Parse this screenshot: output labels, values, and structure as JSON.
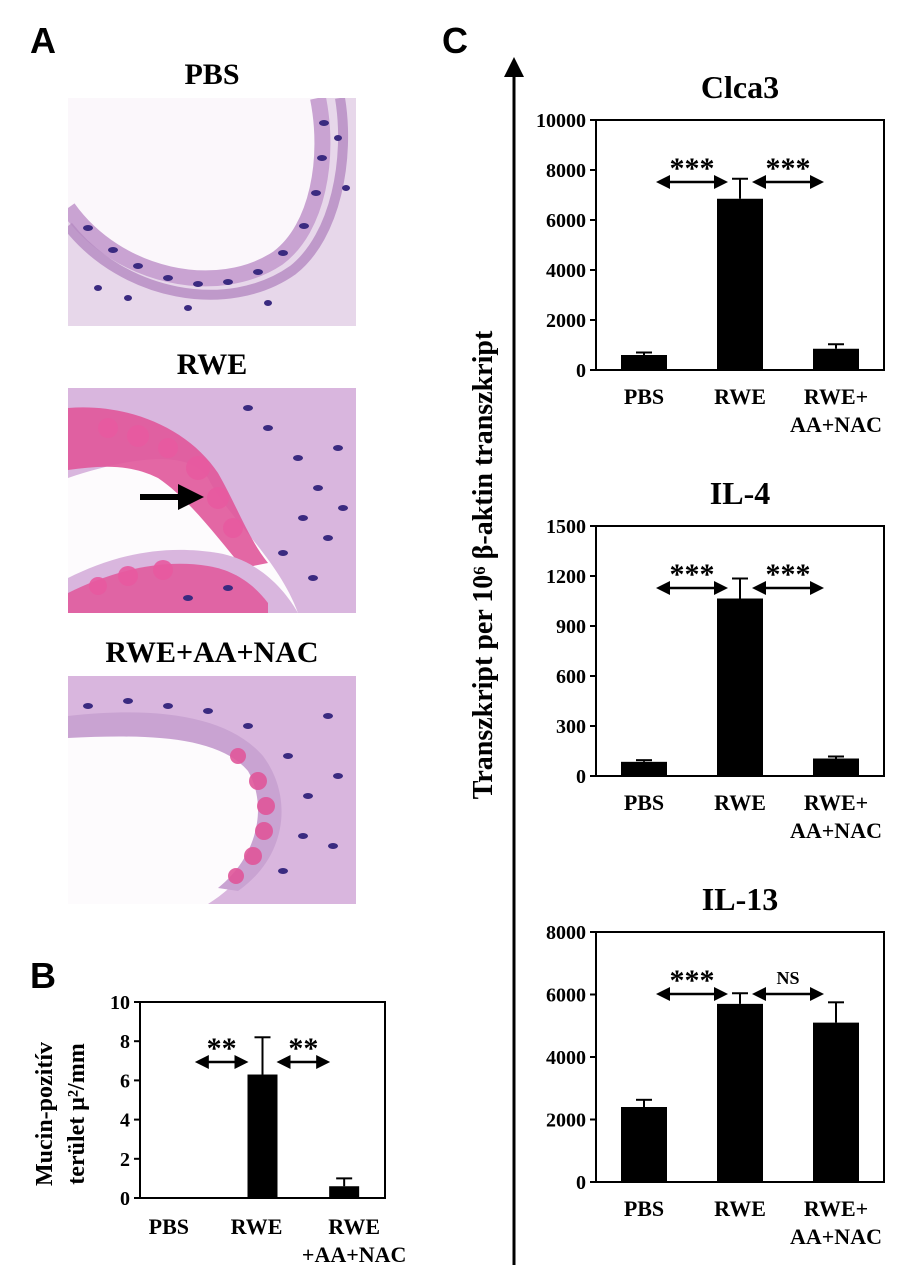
{
  "panels": {
    "A": {
      "letter": "A",
      "images": [
        {
          "title": "PBS",
          "kind": "normal-airway"
        },
        {
          "title": "RWE",
          "kind": "mucin-filled-airway"
        },
        {
          "title": "RWE+AA+NAC",
          "kind": "reduced-mucin-airway"
        }
      ]
    },
    "B": {
      "letter": "B"
    },
    "C": {
      "letter": "C",
      "ylabel": "Transzkript per 10⁶ β-aktin transzkript"
    }
  },
  "colors": {
    "bar": "#000000",
    "tissue": "#c9a3d2",
    "nuclei": "#3a2a80",
    "mucin": "#e0569a"
  },
  "chart_data": [
    {
      "id": "B",
      "type": "bar",
      "ylabel_lines": [
        "Mucin-pozitív",
        "terület μ²/mm"
      ],
      "categories": [
        [
          "PBS"
        ],
        [
          "RWE"
        ],
        [
          "RWE",
          "+AA+NAC"
        ]
      ],
      "values": [
        0.0,
        6.3,
        0.6
      ],
      "errors": [
        0.0,
        1.9,
        0.4
      ],
      "ylim": [
        0,
        10
      ],
      "yticks": [
        0,
        2,
        4,
        6,
        8,
        10
      ],
      "comparisons": [
        {
          "from": 0,
          "to": 1,
          "label": "**"
        },
        {
          "from": 1,
          "to": 2,
          "label": "**"
        }
      ]
    },
    {
      "id": "C-Clca3",
      "type": "bar",
      "title": "Clca3",
      "categories": [
        [
          "PBS"
        ],
        [
          "RWE"
        ],
        [
          "RWE+",
          "AA+NAC"
        ]
      ],
      "values": [
        600,
        6850,
        850
      ],
      "errors": [
        100,
        800,
        180
      ],
      "ylim": [
        0,
        10000
      ],
      "yticks": [
        0,
        2000,
        4000,
        6000,
        8000,
        10000
      ],
      "comparisons": [
        {
          "from": 0,
          "to": 1,
          "label": "***"
        },
        {
          "from": 1,
          "to": 2,
          "label": "***"
        }
      ]
    },
    {
      "id": "C-IL4",
      "type": "bar",
      "title": "IL-4",
      "categories": [
        [
          "PBS"
        ],
        [
          "RWE"
        ],
        [
          "RWE+",
          "AA+NAC"
        ]
      ],
      "values": [
        85,
        1065,
        105
      ],
      "errors": [
        10,
        120,
        12
      ],
      "ylim": [
        0,
        1500
      ],
      "yticks": [
        0,
        300,
        600,
        900,
        1200,
        1500
      ],
      "comparisons": [
        {
          "from": 0,
          "to": 1,
          "label": "***"
        },
        {
          "from": 1,
          "to": 2,
          "label": "***"
        }
      ]
    },
    {
      "id": "C-IL13",
      "type": "bar",
      "title": "IL-13",
      "categories": [
        [
          "PBS"
        ],
        [
          "RWE"
        ],
        [
          "RWE+",
          "AA+NAC"
        ]
      ],
      "values": [
        2400,
        5700,
        5100
      ],
      "errors": [
        230,
        340,
        650
      ],
      "ylim": [
        0,
        8000
      ],
      "yticks": [
        0,
        2000,
        4000,
        6000,
        8000
      ],
      "comparisons": [
        {
          "from": 0,
          "to": 1,
          "label": "***"
        },
        {
          "from": 1,
          "to": 2,
          "label": "NS"
        }
      ]
    }
  ]
}
